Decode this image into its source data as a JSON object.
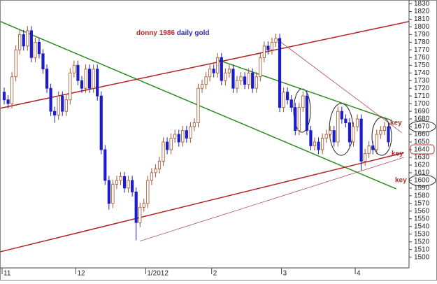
{
  "chart_data": {
    "type": "candlestick",
    "title": "donny 1986",
    "title_2": "daily gold",
    "title_color": "#c0282d",
    "title_2_color": "#2b2bb0",
    "categories": [
      "11",
      null,
      null,
      null,
      null,
      null,
      null,
      null,
      null,
      null,
      null,
      null,
      null,
      null,
      null,
      null,
      null,
      null,
      null,
      "12",
      null,
      null,
      null,
      null,
      null,
      null,
      null,
      null,
      null,
      null,
      null,
      null,
      null,
      null,
      null,
      null,
      null,
      "1/2012",
      null,
      null,
      null,
      null,
      null,
      null,
      null,
      null,
      null,
      null,
      null,
      null,
      null,
      null,
      null,
      null,
      "2",
      null,
      null,
      null,
      null,
      null,
      null,
      null,
      null,
      null,
      null,
      null,
      null,
      null,
      null,
      null,
      null,
      null,
      "3",
      null,
      null,
      null,
      null,
      null,
      null,
      null,
      null,
      null,
      null,
      null,
      null,
      null,
      null,
      null,
      null,
      null,
      null,
      "4",
      null,
      null,
      null,
      null,
      null,
      null,
      null,
      null
    ],
    "open": [
      1715,
      1705,
      1700,
      1735,
      1770,
      1790,
      1775,
      1795,
      1760,
      1780,
      1765,
      1745,
      1720,
      1690,
      1685,
      1710,
      1690,
      1705,
      1740,
      1750,
      1730,
      1720,
      1745,
      1720,
      1745,
      1710,
      1640,
      1600,
      1570,
      1595,
      1600,
      1605,
      1590,
      1600,
      1585,
      1545,
      1565,
      1570,
      1600,
      1610,
      1615,
      1625,
      1650,
      1640,
      1655,
      1660,
      1650,
      1665,
      1655,
      1670,
      1675,
      1720,
      1725,
      1735,
      1745,
      1740,
      1760,
      1730,
      1740,
      1745,
      1720,
      1730,
      1735,
      1725,
      1740,
      1720,
      1735,
      1760,
      1775,
      1770,
      1780,
      1785,
      1695,
      1715,
      1705,
      1695,
      1665,
      1695,
      1710,
      1665,
      1645,
      1650,
      1640,
      1655,
      1660,
      1665,
      1650,
      1690,
      1680,
      1675,
      1650,
      1670,
      1680,
      1625,
      1635,
      1645,
      1640,
      1660,
      1665,
      1670
    ],
    "high": [
      1721,
      1711,
      1741,
      1776,
      1796,
      1796,
      1801,
      1801,
      1786,
      1786,
      1771,
      1751,
      1726,
      1696,
      1716,
      1716,
      1711,
      1746,
      1756,
      1756,
      1736,
      1751,
      1751,
      1751,
      1751,
      1716,
      1646,
      1606,
      1601,
      1606,
      1611,
      1611,
      1606,
      1606,
      1591,
      1571,
      1576,
      1606,
      1616,
      1621,
      1631,
      1656,
      1656,
      1661,
      1666,
      1666,
      1671,
      1671,
      1676,
      1681,
      1726,
      1731,
      1741,
      1751,
      1751,
      1766,
      1766,
      1746,
      1751,
      1751,
      1736,
      1741,
      1741,
      1746,
      1746,
      1741,
      1766,
      1781,
      1781,
      1786,
      1791,
      1791,
      1721,
      1721,
      1711,
      1701,
      1701,
      1716,
      1716,
      1671,
      1656,
      1656,
      1661,
      1666,
      1671,
      1671,
      1696,
      1696,
      1686,
      1681,
      1676,
      1686,
      1686,
      1641,
      1651,
      1651,
      1666,
      1671,
      1676,
      1676
    ],
    "low": [
      1699,
      1694,
      1694,
      1729,
      1764,
      1769,
      1769,
      1754,
      1754,
      1759,
      1739,
      1714,
      1684,
      1675,
      1679,
      1684,
      1684,
      1699,
      1734,
      1724,
      1714,
      1714,
      1714,
      1714,
      1704,
      1634,
      1594,
      1562,
      1564,
      1589,
      1594,
      1584,
      1584,
      1579,
      1522,
      1539,
      1559,
      1564,
      1594,
      1604,
      1609,
      1619,
      1634,
      1634,
      1649,
      1644,
      1644,
      1649,
      1649,
      1664,
      1669,
      1714,
      1719,
      1729,
      1734,
      1734,
      1724,
      1724,
      1734,
      1714,
      1714,
      1724,
      1719,
      1719,
      1714,
      1714,
      1729,
      1754,
      1764,
      1764,
      1774,
      1689,
      1689,
      1699,
      1689,
      1659,
      1659,
      1689,
      1659,
      1639,
      1639,
      1634,
      1634,
      1649,
      1654,
      1644,
      1644,
      1674,
      1669,
      1644,
      1644,
      1664,
      1613,
      1619,
      1629,
      1634,
      1634,
      1654,
      1659,
      1644
    ],
    "close": [
      1705,
      1700,
      1735,
      1770,
      1790,
      1775,
      1795,
      1760,
      1780,
      1765,
      1745,
      1720,
      1690,
      1685,
      1710,
      1690,
      1705,
      1740,
      1750,
      1730,
      1720,
      1745,
      1720,
      1745,
      1710,
      1640,
      1600,
      1570,
      1595,
      1600,
      1605,
      1590,
      1600,
      1585,
      1545,
      1565,
      1570,
      1600,
      1610,
      1615,
      1625,
      1650,
      1640,
      1655,
      1660,
      1650,
      1665,
      1655,
      1670,
      1675,
      1720,
      1725,
      1735,
      1745,
      1740,
      1760,
      1730,
      1740,
      1745,
      1720,
      1730,
      1735,
      1725,
      1740,
      1720,
      1735,
      1760,
      1775,
      1770,
      1780,
      1785,
      1695,
      1715,
      1705,
      1695,
      1665,
      1695,
      1710,
      1665,
      1645,
      1650,
      1640,
      1655,
      1660,
      1665,
      1650,
      1690,
      1680,
      1675,
      1650,
      1670,
      1680,
      1625,
      1635,
      1645,
      1640,
      1660,
      1665,
      1670,
      1650
    ],
    "up_color": "#a0522d",
    "down_color": "#1c1cc8",
    "lines": [
      {
        "color": "#2e8b22",
        "x": [
          -1,
          101
        ],
        "y": [
          1807,
          1589
        ]
      },
      {
        "color": "#2e8b22",
        "x": [
          55,
          100
        ],
        "y": [
          1757,
          1678
        ]
      },
      {
        "color": "#b22222",
        "x": [
          -1,
          109
        ],
        "y": [
          1694,
          1812
        ]
      },
      {
        "color": "#b22222",
        "x": [
          -1,
          103
        ],
        "y": [
          1507,
          1636
        ]
      },
      {
        "color": "#b05050",
        "x": [
          35,
          103
        ],
        "y": [
          1521,
          1630
        ]
      },
      {
        "color": "#b05050",
        "x": [
          70,
          102.5
        ],
        "y": [
          1785,
          1662
        ]
      }
    ],
    "annotations": [
      "key",
      "key",
      "key"
    ],
    "annotation_color": "#c0282d",
    "ylim": [
      1486,
      1835
    ],
    "yticks": [
      1500,
      1510,
      1520,
      1530,
      1540,
      1550,
      1560,
      1570,
      1580,
      1590,
      1600,
      1610,
      1620,
      1630,
      1640,
      1650,
      1660,
      1670,
      1680,
      1690,
      1700,
      1710,
      1720,
      1730,
      1740,
      1750,
      1760,
      1770,
      1780,
      1790,
      1800,
      1810,
      1820,
      1830
    ],
    "grid": false
  }
}
